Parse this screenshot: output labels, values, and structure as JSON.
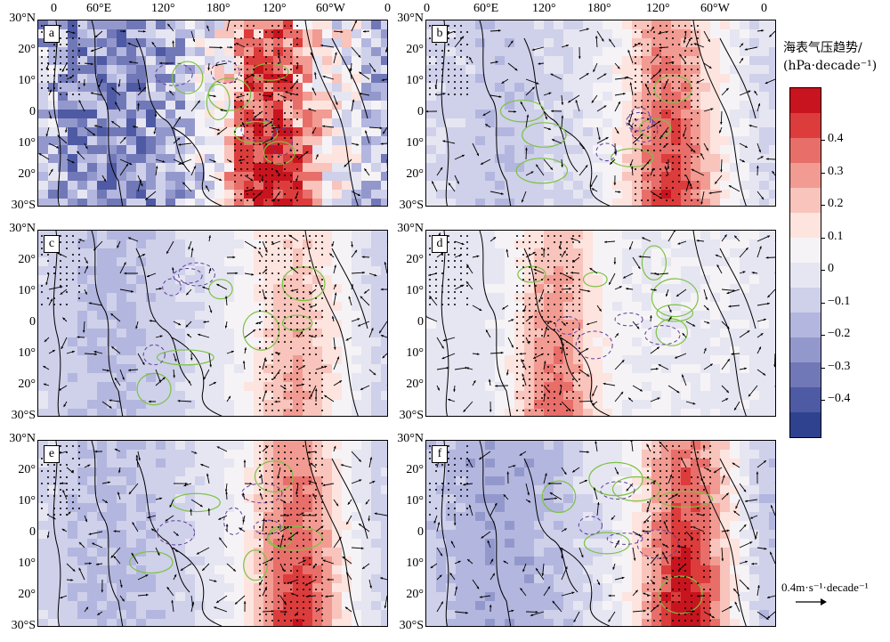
{
  "figure": {
    "x_ticks_top": [
      "0",
      "60°E",
      "120°",
      "180°",
      "120°",
      "60°W",
      "0"
    ],
    "y_ticks": [
      "30°N",
      "20°",
      "10°",
      "0",
      "10°",
      "20°",
      "30°S"
    ],
    "panels": [
      {
        "label": "a"
      },
      {
        "label": "b"
      },
      {
        "label": "c"
      },
      {
        "label": "d"
      },
      {
        "label": "e"
      },
      {
        "label": "f"
      }
    ]
  },
  "colorbar": {
    "title_line1": "海表气压趋势/",
    "title_line2": "(hPa·decade⁻¹)",
    "tick_labels": [
      "0.4",
      "0.3",
      "0.2",
      "0.1",
      "0",
      "−0.1",
      "−0.2",
      "−0.3",
      "−0.4"
    ],
    "colors": [
      "#c8141e",
      "#dc3c3c",
      "#e86e6a",
      "#f29b92",
      "#f8c4bc",
      "#fde4df",
      "#f6f3f6",
      "#e6e6f2",
      "#cfd0ea",
      "#b3b6de",
      "#9398cc",
      "#7178b8",
      "#4f5aa4",
      "#2f428f"
    ]
  },
  "reference_vector": {
    "label": "0.4m·s⁻¹·decade⁻¹"
  }
}
